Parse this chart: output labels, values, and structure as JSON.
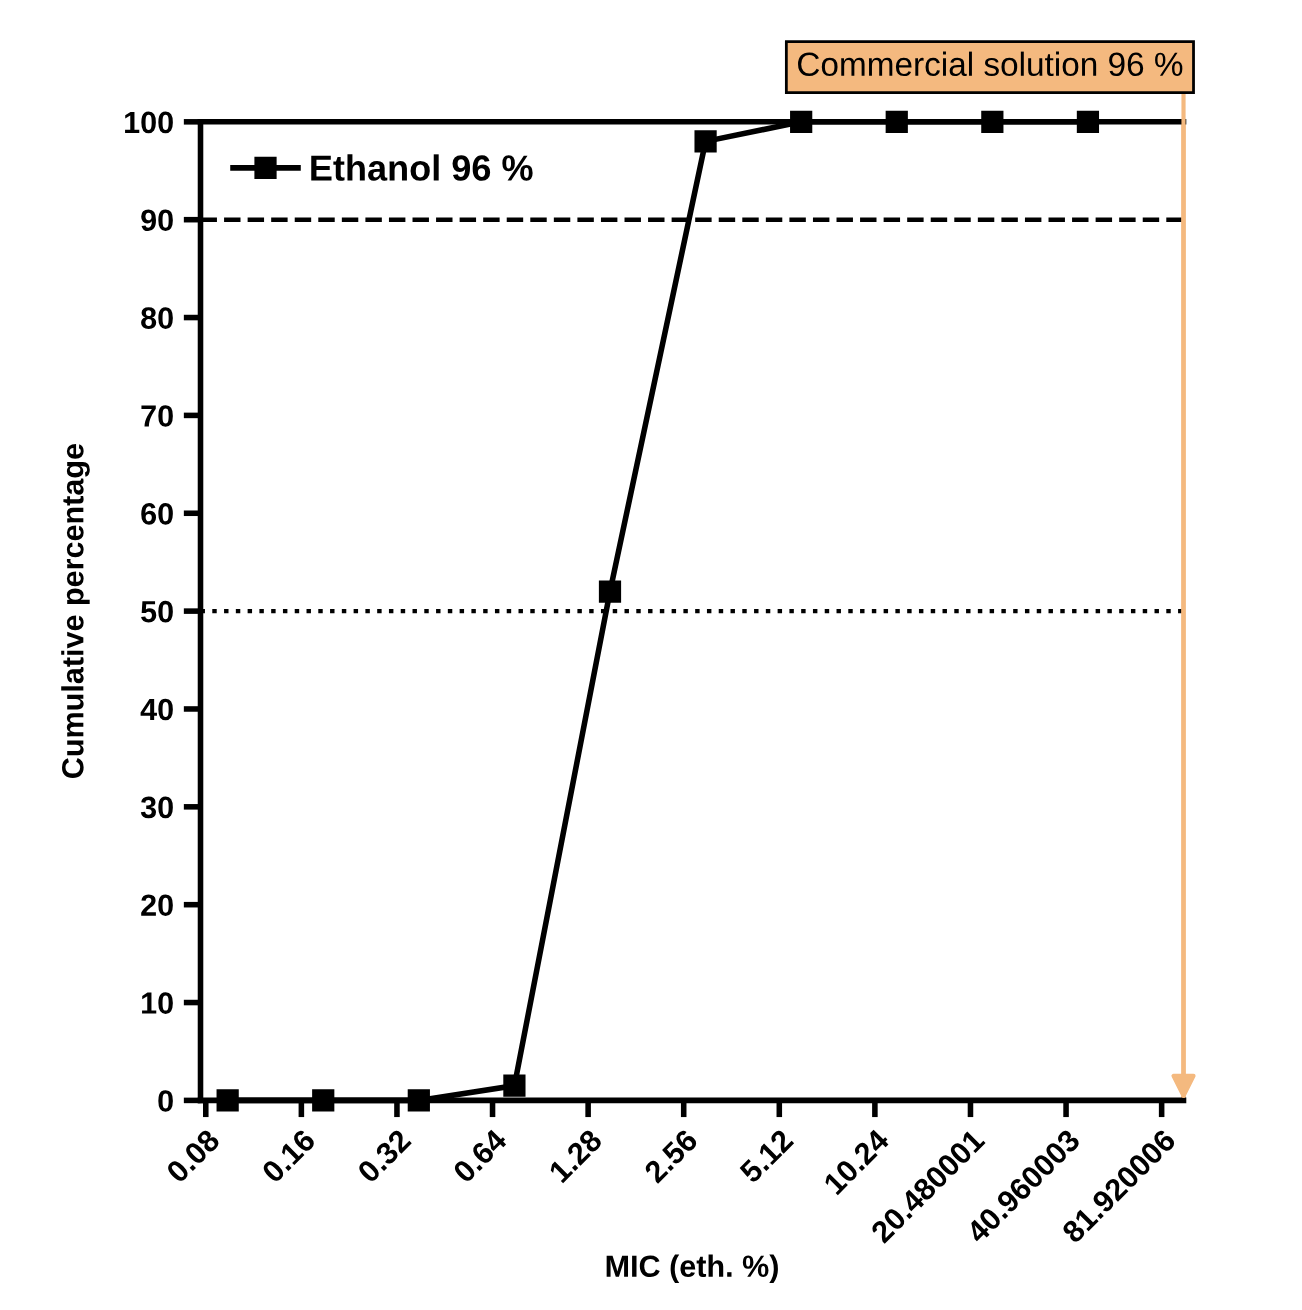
{
  "chart_data": {
    "type": "line",
    "xlabel": "MIC (eth. %)",
    "ylabel": "Cumulative percentage",
    "x": [
      0.09375,
      0.1875,
      0.375,
      0.75,
      1.5,
      3,
      6,
      12,
      24,
      48
    ],
    "series": [
      {
        "name": "Ethanol 96 %",
        "color": "#000000",
        "values": [
          0,
          0,
          0,
          1.5,
          52,
          98,
          100,
          100,
          100,
          100
        ]
      }
    ],
    "log": "x",
    "xlim": [
      0.077,
      96
    ],
    "ylim": [
      0,
      100
    ],
    "xticks": [
      0.08,
      0.16,
      0.32,
      0.64,
      1.28,
      2.56,
      5.12,
      10.24,
      20.480001,
      40.960003,
      81.920006
    ],
    "yticks": [
      0,
      10,
      20,
      30,
      40,
      50,
      60,
      70,
      80,
      90,
      100
    ],
    "ref_lines": [
      {
        "axis": "y",
        "value": 90,
        "line_style": "dashed",
        "color": "#000000"
      },
      {
        "axis": "y",
        "value": 50,
        "line_style": "dotted",
        "color": "#000000"
      },
      {
        "axis": "x",
        "value": 96,
        "label": "Commercial solution 96 %",
        "color": "#f4b97f"
      }
    ],
    "marker": "square",
    "line_style": "solid",
    "legend": "top left",
    "grid": false
  }
}
